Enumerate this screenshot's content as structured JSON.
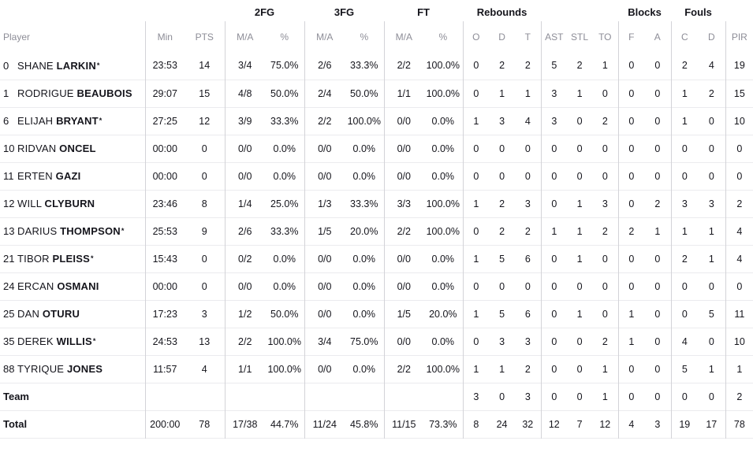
{
  "table": {
    "starter_mark": "*",
    "group_headers": [
      {
        "label": "",
        "span": 1
      },
      {
        "label": "",
        "span": 2
      },
      {
        "label": "2FG",
        "span": 2
      },
      {
        "label": "3FG",
        "span": 2
      },
      {
        "label": "FT",
        "span": 2
      },
      {
        "label": "Rebounds",
        "span": 3
      },
      {
        "label": "",
        "span": 3
      },
      {
        "label": "Blocks",
        "span": 2
      },
      {
        "label": "Fouls",
        "span": 2
      },
      {
        "label": "",
        "span": 1
      }
    ],
    "columns": [
      {
        "key": "player",
        "label": "Player"
      },
      {
        "key": "min",
        "label": "Min",
        "group_start": true
      },
      {
        "key": "pts",
        "label": "PTS"
      },
      {
        "key": "fg2_ma",
        "label": "M/A",
        "group_start": true
      },
      {
        "key": "fg2_pct",
        "label": "%"
      },
      {
        "key": "fg3_ma",
        "label": "M/A",
        "group_start": true
      },
      {
        "key": "fg3_pct",
        "label": "%"
      },
      {
        "key": "ft_ma",
        "label": "M/A",
        "group_start": true
      },
      {
        "key": "ft_pct",
        "label": "%"
      },
      {
        "key": "reb_o",
        "label": "O",
        "group_start": true
      },
      {
        "key": "reb_d",
        "label": "D"
      },
      {
        "key": "reb_t",
        "label": "T"
      },
      {
        "key": "ast",
        "label": "AST",
        "group_start": true
      },
      {
        "key": "stl",
        "label": "STL"
      },
      {
        "key": "to",
        "label": "TO"
      },
      {
        "key": "blk_f",
        "label": "F",
        "group_start": true
      },
      {
        "key": "blk_a",
        "label": "A"
      },
      {
        "key": "foul_c",
        "label": "C",
        "group_start": true
      },
      {
        "key": "foul_d",
        "label": "D"
      },
      {
        "key": "pir",
        "label": "PIR",
        "group_start": true
      }
    ],
    "rows": [
      {
        "type": "player",
        "number": "0",
        "first": "SHANE",
        "last": "LARKIN",
        "starter": true,
        "stats": {
          "min": "23:53",
          "pts": "14",
          "fg2_ma": "3/4",
          "fg2_pct": "75.0%",
          "fg3_ma": "2/6",
          "fg3_pct": "33.3%",
          "ft_ma": "2/2",
          "ft_pct": "100.0%",
          "reb_o": "0",
          "reb_d": "2",
          "reb_t": "2",
          "ast": "5",
          "stl": "2",
          "to": "1",
          "blk_f": "0",
          "blk_a": "0",
          "foul_c": "2",
          "foul_d": "4",
          "pir": "19"
        }
      },
      {
        "type": "player",
        "number": "1",
        "first": "RODRIGUE",
        "last": "BEAUBOIS",
        "starter": false,
        "stats": {
          "min": "29:07",
          "pts": "15",
          "fg2_ma": "4/8",
          "fg2_pct": "50.0%",
          "fg3_ma": "2/4",
          "fg3_pct": "50.0%",
          "ft_ma": "1/1",
          "ft_pct": "100.0%",
          "reb_o": "0",
          "reb_d": "1",
          "reb_t": "1",
          "ast": "3",
          "stl": "1",
          "to": "0",
          "blk_f": "0",
          "blk_a": "0",
          "foul_c": "1",
          "foul_d": "2",
          "pir": "15"
        }
      },
      {
        "type": "player",
        "number": "6",
        "first": "ELIJAH",
        "last": "BRYANT",
        "starter": true,
        "stats": {
          "min": "27:25",
          "pts": "12",
          "fg2_ma": "3/9",
          "fg2_pct": "33.3%",
          "fg3_ma": "2/2",
          "fg3_pct": "100.0%",
          "ft_ma": "0/0",
          "ft_pct": "0.0%",
          "reb_o": "1",
          "reb_d": "3",
          "reb_t": "4",
          "ast": "3",
          "stl": "0",
          "to": "2",
          "blk_f": "0",
          "blk_a": "0",
          "foul_c": "1",
          "foul_d": "0",
          "pir": "10"
        }
      },
      {
        "type": "player",
        "number": "10",
        "first": "RIDVAN",
        "last": "ONCEL",
        "starter": false,
        "stats": {
          "min": "00:00",
          "pts": "0",
          "fg2_ma": "0/0",
          "fg2_pct": "0.0%",
          "fg3_ma": "0/0",
          "fg3_pct": "0.0%",
          "ft_ma": "0/0",
          "ft_pct": "0.0%",
          "reb_o": "0",
          "reb_d": "0",
          "reb_t": "0",
          "ast": "0",
          "stl": "0",
          "to": "0",
          "blk_f": "0",
          "blk_a": "0",
          "foul_c": "0",
          "foul_d": "0",
          "pir": "0"
        }
      },
      {
        "type": "player",
        "number": "11",
        "first": "ERTEN",
        "last": "GAZI",
        "starter": false,
        "stats": {
          "min": "00:00",
          "pts": "0",
          "fg2_ma": "0/0",
          "fg2_pct": "0.0%",
          "fg3_ma": "0/0",
          "fg3_pct": "0.0%",
          "ft_ma": "0/0",
          "ft_pct": "0.0%",
          "reb_o": "0",
          "reb_d": "0",
          "reb_t": "0",
          "ast": "0",
          "stl": "0",
          "to": "0",
          "blk_f": "0",
          "blk_a": "0",
          "foul_c": "0",
          "foul_d": "0",
          "pir": "0"
        }
      },
      {
        "type": "player",
        "number": "12",
        "first": "WILL",
        "last": "CLYBURN",
        "starter": false,
        "stats": {
          "min": "23:46",
          "pts": "8",
          "fg2_ma": "1/4",
          "fg2_pct": "25.0%",
          "fg3_ma": "1/3",
          "fg3_pct": "33.3%",
          "ft_ma": "3/3",
          "ft_pct": "100.0%",
          "reb_o": "1",
          "reb_d": "2",
          "reb_t": "3",
          "ast": "0",
          "stl": "1",
          "to": "3",
          "blk_f": "0",
          "blk_a": "2",
          "foul_c": "3",
          "foul_d": "3",
          "pir": "2"
        }
      },
      {
        "type": "player",
        "number": "13",
        "first": "DARIUS",
        "last": "THOMPSON",
        "starter": true,
        "stats": {
          "min": "25:53",
          "pts": "9",
          "fg2_ma": "2/6",
          "fg2_pct": "33.3%",
          "fg3_ma": "1/5",
          "fg3_pct": "20.0%",
          "ft_ma": "2/2",
          "ft_pct": "100.0%",
          "reb_o": "0",
          "reb_d": "2",
          "reb_t": "2",
          "ast": "1",
          "stl": "1",
          "to": "2",
          "blk_f": "2",
          "blk_a": "1",
          "foul_c": "1",
          "foul_d": "1",
          "pir": "4"
        }
      },
      {
        "type": "player",
        "number": "21",
        "first": "TIBOR",
        "last": "PLEISS",
        "starter": true,
        "stats": {
          "min": "15:43",
          "pts": "0",
          "fg2_ma": "0/2",
          "fg2_pct": "0.0%",
          "fg3_ma": "0/0",
          "fg3_pct": "0.0%",
          "ft_ma": "0/0",
          "ft_pct": "0.0%",
          "reb_o": "1",
          "reb_d": "5",
          "reb_t": "6",
          "ast": "0",
          "stl": "1",
          "to": "0",
          "blk_f": "0",
          "blk_a": "0",
          "foul_c": "2",
          "foul_d": "1",
          "pir": "4"
        }
      },
      {
        "type": "player",
        "number": "24",
        "first": "ERCAN",
        "last": "OSMANI",
        "starter": false,
        "stats": {
          "min": "00:00",
          "pts": "0",
          "fg2_ma": "0/0",
          "fg2_pct": "0.0%",
          "fg3_ma": "0/0",
          "fg3_pct": "0.0%",
          "ft_ma": "0/0",
          "ft_pct": "0.0%",
          "reb_o": "0",
          "reb_d": "0",
          "reb_t": "0",
          "ast": "0",
          "stl": "0",
          "to": "0",
          "blk_f": "0",
          "blk_a": "0",
          "foul_c": "0",
          "foul_d": "0",
          "pir": "0"
        }
      },
      {
        "type": "player",
        "number": "25",
        "first": "DAN",
        "last": "OTURU",
        "starter": false,
        "stats": {
          "min": "17:23",
          "pts": "3",
          "fg2_ma": "1/2",
          "fg2_pct": "50.0%",
          "fg3_ma": "0/0",
          "fg3_pct": "0.0%",
          "ft_ma": "1/5",
          "ft_pct": "20.0%",
          "reb_o": "1",
          "reb_d": "5",
          "reb_t": "6",
          "ast": "0",
          "stl": "1",
          "to": "0",
          "blk_f": "1",
          "blk_a": "0",
          "foul_c": "0",
          "foul_d": "5",
          "pir": "11"
        }
      },
      {
        "type": "player",
        "number": "35",
        "first": "DEREK",
        "last": "WILLIS",
        "starter": true,
        "stats": {
          "min": "24:53",
          "pts": "13",
          "fg2_ma": "2/2",
          "fg2_pct": "100.0%",
          "fg3_ma": "3/4",
          "fg3_pct": "75.0%",
          "ft_ma": "0/0",
          "ft_pct": "0.0%",
          "reb_o": "0",
          "reb_d": "3",
          "reb_t": "3",
          "ast": "0",
          "stl": "0",
          "to": "2",
          "blk_f": "1",
          "blk_a": "0",
          "foul_c": "4",
          "foul_d": "0",
          "pir": "10"
        }
      },
      {
        "type": "player",
        "number": "88",
        "first": "TYRIQUE",
        "last": "JONES",
        "starter": false,
        "stats": {
          "min": "11:57",
          "pts": "4",
          "fg2_ma": "1/1",
          "fg2_pct": "100.0%",
          "fg3_ma": "0/0",
          "fg3_pct": "0.0%",
          "ft_ma": "2/2",
          "ft_pct": "100.0%",
          "reb_o": "1",
          "reb_d": "1",
          "reb_t": "2",
          "ast": "0",
          "stl": "0",
          "to": "1",
          "blk_f": "0",
          "blk_a": "0",
          "foul_c": "5",
          "foul_d": "1",
          "pir": "1"
        }
      },
      {
        "type": "summary",
        "label": "Team",
        "stats": {
          "min": "",
          "pts": "",
          "fg2_ma": "",
          "fg2_pct": "",
          "fg3_ma": "",
          "fg3_pct": "",
          "ft_ma": "",
          "ft_pct": "",
          "reb_o": "3",
          "reb_d": "0",
          "reb_t": "3",
          "ast": "0",
          "stl": "0",
          "to": "1",
          "blk_f": "0",
          "blk_a": "0",
          "foul_c": "0",
          "foul_d": "0",
          "pir": "2"
        }
      },
      {
        "type": "summary",
        "label": "Total",
        "stats": {
          "min": "200:00",
          "pts": "78",
          "fg2_ma": "17/38",
          "fg2_pct": "44.7%",
          "fg3_ma": "11/24",
          "fg3_pct": "45.8%",
          "ft_ma": "11/15",
          "ft_pct": "73.3%",
          "reb_o": "8",
          "reb_d": "24",
          "reb_t": "32",
          "ast": "12",
          "stl": "7",
          "to": "12",
          "blk_f": "4",
          "blk_a": "3",
          "foul_c": "19",
          "foul_d": "17",
          "pir": "78"
        }
      }
    ]
  },
  "colors": {
    "text": "#15151c",
    "muted_header": "#8d8d97",
    "row_divider": "#ebebee",
    "group_divider": "#d3d3d8",
    "background": "#ffffff"
  }
}
